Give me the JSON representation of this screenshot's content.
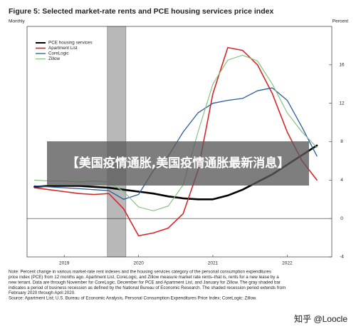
{
  "chart_data": {
    "type": "line",
    "title": "Figure 5: Selected market-rate rents and PCE housing services price index",
    "left_label": "Monthly",
    "right_label": "Percent",
    "x": [
      2019.1,
      2019.3,
      2019.5,
      2019.7,
      2019.9,
      2020.1,
      2020.3,
      2020.5,
      2020.7,
      2020.9,
      2021.1,
      2021.3,
      2021.5,
      2021.7,
      2021.9,
      2022.1,
      2022.3,
      2022.5,
      2022.7,
      2022.9
    ],
    "series": [
      {
        "name": "PCE housing services",
        "color": "#000000",
        "width": 2.6,
        "values": [
          3.3,
          3.4,
          3.4,
          3.4,
          3.3,
          3.2,
          3.0,
          2.8,
          2.6,
          2.3,
          2.1,
          2.0,
          2.0,
          2.4,
          3.0,
          3.8,
          4.6,
          5.6,
          6.6,
          7.6
        ]
      },
      {
        "name": "Apartment List",
        "color": "#d7262b",
        "width": 1.6,
        "values": [
          3.2,
          3.0,
          2.8,
          2.6,
          2.5,
          2.6,
          1.0,
          -1.8,
          -1.5,
          -1.0,
          0.5,
          5,
          13,
          17.8,
          17.5,
          16,
          13,
          9,
          6,
          4
        ]
      },
      {
        "name": "CoreLogic",
        "color": "#2a5d9c",
        "width": 1.3,
        "values": [
          3.4,
          3.3,
          3.2,
          3.1,
          3.0,
          2.9,
          2.0,
          2.5,
          5,
          6.5,
          9,
          11,
          12,
          12.3,
          12.5,
          13.3,
          13.6,
          12.3,
          9.5,
          6.5
        ]
      },
      {
        "name": "Zillow",
        "color": "#79c275",
        "width": 1.1,
        "values": [
          4.0,
          3.9,
          3.9,
          3.8,
          3.9,
          3.8,
          2.8,
          1.2,
          0.8,
          1.3,
          3.5,
          9,
          14,
          16.5,
          17,
          16.4,
          14,
          11,
          9,
          7.4
        ]
      }
    ],
    "shaded_region": [
      2020.08,
      2020.33
    ],
    "shade_color": "#b8b8b8",
    "xlim": [
      2019,
      2023.1
    ],
    "xticks": [
      {
        "value": 2019.5,
        "label": "2019"
      },
      {
        "value": 2020.5,
        "label": "2020"
      },
      {
        "value": 2021.5,
        "label": "2021"
      },
      {
        "value": 2022.5,
        "label": "2022"
      }
    ],
    "ylim": [
      -4,
      20
    ],
    "yticks": [
      -4,
      0,
      4,
      8,
      12,
      16
    ],
    "zero_line": true,
    "grid": false,
    "legend": "upper-left",
    "notes": [
      "Note: Percent change in various market-rate rent indexes and the housing services category of the personal consumption expenditures",
      "price index (PCE) from 12 months ago. Apartment List, CoreLogic, and Zillow measure market rate rents–that is, rents for a new lease by a",
      "new tenant. Data are through November for CoreLogic, December for PCE and Apartment List, and January for Zillow. The gray shaded bar",
      "indicates a period of business recession as defined by the National Bureau of Economic Research. The shaded recession period extends from",
      "February 2020 through April 2020.",
      "Source: Apartment List; U.S. Bureau of Economic Analysis, Personal Consumption Expenditures Price Index; CoreLogic; Zillow."
    ]
  },
  "overlay": {
    "banner": "【美国疫情通胀,美国疫情通胀最新消息】",
    "watermark": "知乎 @Loocle"
  }
}
